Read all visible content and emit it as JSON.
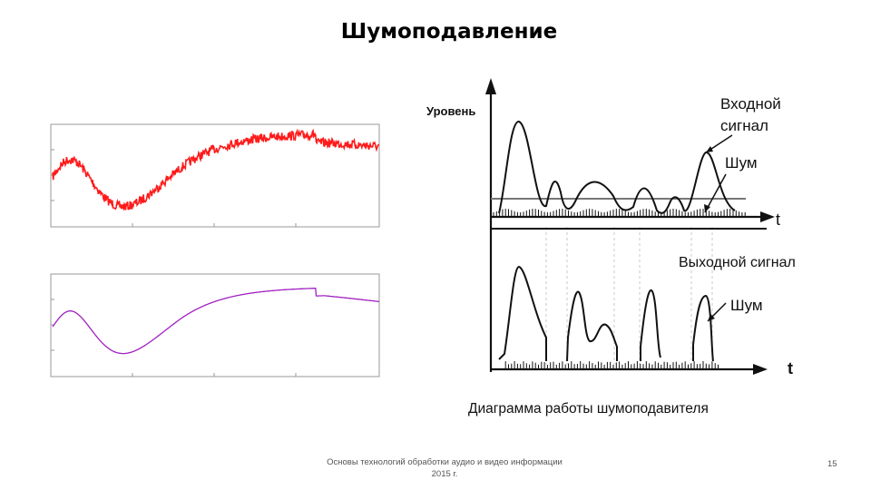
{
  "slide": {
    "title": "Шумоподавление",
    "footer_line1": "Основы технологий обработки аудио и видео информации",
    "footer_line2": "2015 г.",
    "page_number": "15"
  },
  "diagram": {
    "y_axis_label": "Уровень",
    "input_label_line1": "Входной",
    "input_label_line2": "сигнал",
    "noise_label_top": "Шум",
    "time_label_top": "t",
    "output_label": "Выходной сигнал",
    "noise_label_bottom": "Шум",
    "time_label_bottom": "t",
    "caption": "Диаграмма работы шумоподавителя"
  },
  "colors": {
    "noisy_wave": "#ff1a1a",
    "clean_wave": "#a020c0",
    "plot_frame": "#9a9a9a",
    "diagram_ink": "#111111"
  }
}
